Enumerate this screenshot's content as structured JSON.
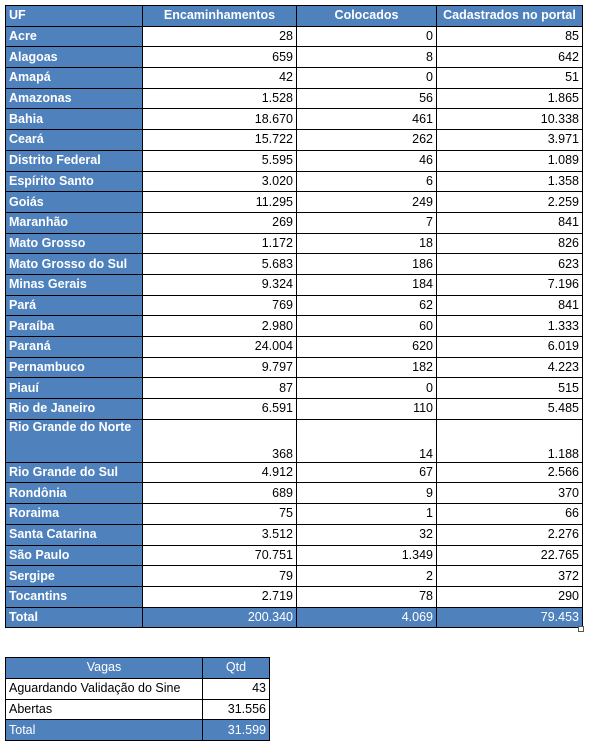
{
  "main_table": {
    "headers": {
      "uf": "UF",
      "encaminhamentos": "Encaminhamentos",
      "colocados": "Colocados",
      "cadastrados": "Cadastrados no portal"
    },
    "rows": [
      {
        "uf": "Acre",
        "encaminhamentos": "28",
        "colocados": "0",
        "cadastrados": "85"
      },
      {
        "uf": "Alagoas",
        "encaminhamentos": "659",
        "colocados": "8",
        "cadastrados": "642"
      },
      {
        "uf": "Amapá",
        "encaminhamentos": "42",
        "colocados": "0",
        "cadastrados": "51"
      },
      {
        "uf": "Amazonas",
        "encaminhamentos": "1.528",
        "colocados": "56",
        "cadastrados": "1.865"
      },
      {
        "uf": "Bahia",
        "encaminhamentos": "18.670",
        "colocados": "461",
        "cadastrados": "10.338"
      },
      {
        "uf": "Ceará",
        "encaminhamentos": "15.722",
        "colocados": "262",
        "cadastrados": "3.971"
      },
      {
        "uf": "Distrito Federal",
        "encaminhamentos": "5.595",
        "colocados": "46",
        "cadastrados": "1.089"
      },
      {
        "uf": "Espírito Santo",
        "encaminhamentos": "3.020",
        "colocados": "6",
        "cadastrados": "1.358"
      },
      {
        "uf": "Goiás",
        "encaminhamentos": "11.295",
        "colocados": "249",
        "cadastrados": "2.259"
      },
      {
        "uf": "Maranhão",
        "encaminhamentos": "269",
        "colocados": "7",
        "cadastrados": "841"
      },
      {
        "uf": "Mato Grosso",
        "encaminhamentos": "1.172",
        "colocados": "18",
        "cadastrados": "826"
      },
      {
        "uf": "Mato Grosso do Sul",
        "encaminhamentos": "5.683",
        "colocados": "186",
        "cadastrados": "623"
      },
      {
        "uf": "Minas Gerais",
        "encaminhamentos": "9.324",
        "colocados": "184",
        "cadastrados": "7.196"
      },
      {
        "uf": "Pará",
        "encaminhamentos": "769",
        "colocados": "62",
        "cadastrados": "841"
      },
      {
        "uf": "Paraíba",
        "encaminhamentos": "2.980",
        "colocados": "60",
        "cadastrados": "1.333"
      },
      {
        "uf": "Paraná",
        "encaminhamentos": "24.004",
        "colocados": "620",
        "cadastrados": "6.019"
      },
      {
        "uf": "Pernambuco",
        "encaminhamentos": "9.797",
        "colocados": "182",
        "cadastrados": "4.223"
      },
      {
        "uf": "Piauí",
        "encaminhamentos": "87",
        "colocados": "0",
        "cadastrados": "515"
      },
      {
        "uf": "Rio de Janeiro",
        "encaminhamentos": "6.591",
        "colocados": "110",
        "cadastrados": "5.485"
      },
      {
        "uf": "Rio Grande do Norte",
        "encaminhamentos": "368",
        "colocados": "14",
        "cadastrados": "1.188"
      },
      {
        "uf": "Rio Grande do Sul",
        "encaminhamentos": "4.912",
        "colocados": "67",
        "cadastrados": "2.566"
      },
      {
        "uf": "Rondônia",
        "encaminhamentos": "689",
        "colocados": "9",
        "cadastrados": "370"
      },
      {
        "uf": "Roraima",
        "encaminhamentos": "75",
        "colocados": "1",
        "cadastrados": "66"
      },
      {
        "uf": "Santa Catarina",
        "encaminhamentos": "3.512",
        "colocados": "32",
        "cadastrados": "2.276"
      },
      {
        "uf": "São Paulo",
        "encaminhamentos": "70.751",
        "colocados": "1.349",
        "cadastrados": "22.765"
      },
      {
        "uf": "Sergipe",
        "encaminhamentos": "79",
        "colocados": "2",
        "cadastrados": "372"
      },
      {
        "uf": "Tocantins",
        "encaminhamentos": "2.719",
        "colocados": "78",
        "cadastrados": "290"
      }
    ],
    "total": {
      "uf": "Total",
      "encaminhamentos": "200.340",
      "colocados": "4.069",
      "cadastrados": "79.453"
    }
  },
  "vagas_table": {
    "headers": {
      "vagas": "Vagas",
      "qtd": "Qtd"
    },
    "rows": [
      {
        "label": "Aguardando Validação do Sine",
        "qtd": "43"
      },
      {
        "label": "Abertas",
        "qtd": "31.556"
      }
    ],
    "total": {
      "label": "Total",
      "qtd": "31.599"
    }
  },
  "colors": {
    "header_blue": "#4f81bd",
    "header_text": "#ffffff",
    "border": "#000000"
  }
}
